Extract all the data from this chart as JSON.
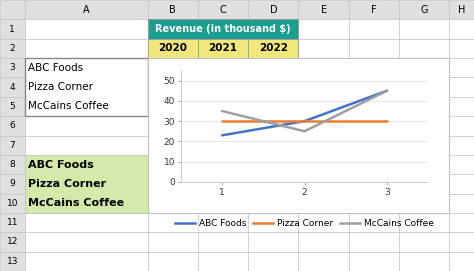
{
  "col_letters": [
    "",
    "A",
    "B",
    "C",
    "D",
    "E",
    "F",
    "G",
    "H"
  ],
  "row_numbers": [
    "",
    "1",
    "2",
    "3",
    "4",
    "5",
    "6",
    "7",
    "8",
    "9",
    "10",
    "11",
    "12",
    "13"
  ],
  "cw_raw": [
    22,
    110,
    45,
    45,
    45,
    45,
    45,
    45,
    22
  ],
  "n_rows": 14,
  "bg_color": "#f0f0f0",
  "header_bg": "#e0e0e0",
  "cell_bg": "#ffffff",
  "cell_border": "#c0c0c0",
  "header_border": "#999999",
  "teal_bg": "#1a9e8f",
  "yellow_bg": "#f0e87a",
  "green_bg": "#d4eaaa",
  "col_A_text_cells": {
    "3": "ABC Foods",
    "4": "Pizza Corner",
    "5": "McCains Coffee"
  },
  "col_A_green_cells": {
    "8": "ABC Foods",
    "9": "Pizza Corner",
    "10": "McCains Coffee"
  },
  "revenue_header": "Revenue (in thousand $)",
  "year_labels": [
    "2020",
    "2021",
    "2022"
  ],
  "series": {
    "ABC Foods": {
      "x": [
        1,
        2,
        3
      ],
      "y": [
        23,
        30,
        45
      ],
      "color": "#4472c4",
      "lw": 1.8
    },
    "Pizza Corner": {
      "x": [
        1,
        2,
        3
      ],
      "y": [
        30,
        30,
        30
      ],
      "color": "#ed7d31",
      "lw": 1.8
    },
    "McCains Coffee": {
      "x": [
        1,
        2,
        3
      ],
      "y": [
        35,
        25,
        45
      ],
      "color": "#a0a0a0",
      "lw": 1.8
    }
  },
  "chart_ylim": [
    0,
    55
  ],
  "chart_yticks": [
    0,
    10,
    20,
    30,
    40,
    50
  ],
  "chart_xticks": [
    1,
    2,
    3
  ],
  "legend_order": [
    "ABC Foods",
    "Pizza Corner",
    "McCains Coffee"
  ],
  "legend_colors": {
    "ABC Foods": "#4472c4",
    "Pizza Corner": "#ed7d31",
    "McCains Coffee": "#a0a0a0"
  },
  "chart_grid_color": "#dddddd",
  "chart_border_color": "#c0c0c0"
}
